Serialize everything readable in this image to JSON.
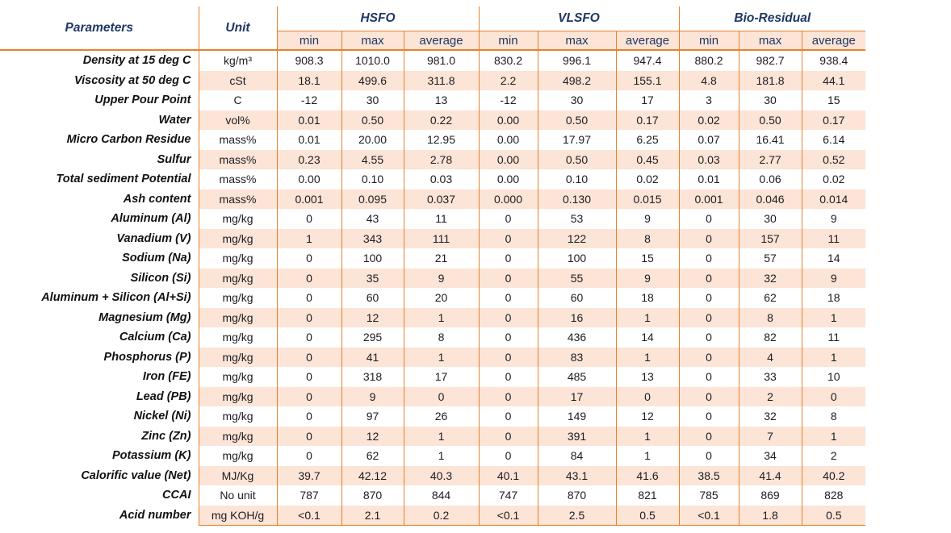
{
  "table": {
    "header": {
      "parameters_label": "Parameters",
      "unit_label": "Unit",
      "groups": [
        {
          "label": "HSFO"
        },
        {
          "label": "VLSFO"
        },
        {
          "label": "Bio-Residual"
        }
      ],
      "sub_columns": [
        "min",
        "max",
        "average"
      ]
    },
    "rows": [
      {
        "parameter": "Density at 15 deg C",
        "unit": "kg/m³",
        "hsfo": [
          "908.3",
          "1010.0",
          "981.0"
        ],
        "vlsfo": [
          "830.2",
          "996.1",
          "947.4"
        ],
        "bio": [
          "880.2",
          "982.7",
          "938.4"
        ]
      },
      {
        "parameter": "Viscosity at 50 deg C",
        "unit": "cSt",
        "hsfo": [
          "18.1",
          "499.6",
          "311.8"
        ],
        "vlsfo": [
          "2.2",
          "498.2",
          "155.1"
        ],
        "bio": [
          "4.8",
          "181.8",
          "44.1"
        ]
      },
      {
        "parameter": "Upper Pour Point",
        "unit": "C",
        "hsfo": [
          "-12",
          "30",
          "13"
        ],
        "vlsfo": [
          "-12",
          "30",
          "17"
        ],
        "bio": [
          "3",
          "30",
          "15"
        ]
      },
      {
        "parameter": "Water",
        "unit": "vol%",
        "hsfo": [
          "0.01",
          "0.50",
          "0.22"
        ],
        "vlsfo": [
          "0.00",
          "0.50",
          "0.17"
        ],
        "bio": [
          "0.02",
          "0.50",
          "0.17"
        ]
      },
      {
        "parameter": "Micro Carbon Residue",
        "unit": "mass%",
        "hsfo": [
          "0.01",
          "20.00",
          "12.95"
        ],
        "vlsfo": [
          "0.00",
          "17.97",
          "6.25"
        ],
        "bio": [
          "0.07",
          "16.41",
          "6.14"
        ]
      },
      {
        "parameter": "Sulfur",
        "unit": "mass%",
        "hsfo": [
          "0.23",
          "4.55",
          "2.78"
        ],
        "vlsfo": [
          "0.00",
          "0.50",
          "0.45"
        ],
        "bio": [
          "0.03",
          "2.77",
          "0.52"
        ]
      },
      {
        "parameter": "Total sediment Potential",
        "unit": "mass%",
        "hsfo": [
          "0.00",
          "0.10",
          "0.03"
        ],
        "vlsfo": [
          "0.00",
          "0.10",
          "0.02"
        ],
        "bio": [
          "0.01",
          "0.06",
          "0.02"
        ]
      },
      {
        "parameter": "Ash content",
        "unit": "mass%",
        "hsfo": [
          "0.001",
          "0.095",
          "0.037"
        ],
        "vlsfo": [
          "0.000",
          "0.130",
          "0.015"
        ],
        "bio": [
          "0.001",
          "0.046",
          "0.014"
        ]
      },
      {
        "parameter": "Aluminum (Al)",
        "unit": "mg/kg",
        "hsfo": [
          "0",
          "43",
          "11"
        ],
        "vlsfo": [
          "0",
          "53",
          "9"
        ],
        "bio": [
          "0",
          "30",
          "9"
        ]
      },
      {
        "parameter": "Vanadium (V)",
        "unit": "mg/kg",
        "hsfo": [
          "1",
          "343",
          "111"
        ],
        "vlsfo": [
          "0",
          "122",
          "8"
        ],
        "bio": [
          "0",
          "157",
          "11"
        ]
      },
      {
        "parameter": "Sodium (Na)",
        "unit": "mg/kg",
        "hsfo": [
          "0",
          "100",
          "21"
        ],
        "vlsfo": [
          "0",
          "100",
          "15"
        ],
        "bio": [
          "0",
          "57",
          "14"
        ]
      },
      {
        "parameter": "Silicon (Si)",
        "unit": "mg/kg",
        "hsfo": [
          "0",
          "35",
          "9"
        ],
        "vlsfo": [
          "0",
          "55",
          "9"
        ],
        "bio": [
          "0",
          "32",
          "9"
        ]
      },
      {
        "parameter": "Aluminum + Silicon (Al+Si)",
        "unit": "mg/kg",
        "hsfo": [
          "0",
          "60",
          "20"
        ],
        "vlsfo": [
          "0",
          "60",
          "18"
        ],
        "bio": [
          "0",
          "62",
          "18"
        ]
      },
      {
        "parameter": "Magnesium (Mg)",
        "unit": "mg/kg",
        "hsfo": [
          "0",
          "12",
          "1"
        ],
        "vlsfo": [
          "0",
          "16",
          "1"
        ],
        "bio": [
          "0",
          "8",
          "1"
        ]
      },
      {
        "parameter": "Calcium (Ca)",
        "unit": "mg/kg",
        "hsfo": [
          "0",
          "295",
          "8"
        ],
        "vlsfo": [
          "0",
          "436",
          "14"
        ],
        "bio": [
          "0",
          "82",
          "11"
        ]
      },
      {
        "parameter": "Phosphorus (P)",
        "unit": "mg/kg",
        "hsfo": [
          "0",
          "41",
          "1"
        ],
        "vlsfo": [
          "0",
          "83",
          "1"
        ],
        "bio": [
          "0",
          "4",
          "1"
        ]
      },
      {
        "parameter": "Iron (FE)",
        "unit": "mg/kg",
        "hsfo": [
          "0",
          "318",
          "17"
        ],
        "vlsfo": [
          "0",
          "485",
          "13"
        ],
        "bio": [
          "0",
          "33",
          "10"
        ]
      },
      {
        "parameter": "Lead (PB)",
        "unit": "mg/kg",
        "hsfo": [
          "0",
          "9",
          "0"
        ],
        "vlsfo": [
          "0",
          "17",
          "0"
        ],
        "bio": [
          "0",
          "2",
          "0"
        ]
      },
      {
        "parameter": "Nickel (Ni)",
        "unit": "mg/kg",
        "hsfo": [
          "0",
          "97",
          "26"
        ],
        "vlsfo": [
          "0",
          "149",
          "12"
        ],
        "bio": [
          "0",
          "32",
          "8"
        ]
      },
      {
        "parameter": "Zinc (Zn)",
        "unit": "mg/kg",
        "hsfo": [
          "0",
          "12",
          "1"
        ],
        "vlsfo": [
          "0",
          "391",
          "1"
        ],
        "bio": [
          "0",
          "7",
          "1"
        ]
      },
      {
        "parameter": "Potassium (K)",
        "unit": "mg/kg",
        "hsfo": [
          "0",
          "62",
          "1"
        ],
        "vlsfo": [
          "0",
          "84",
          "1"
        ],
        "bio": [
          "0",
          "34",
          "2"
        ]
      },
      {
        "parameter": "Calorific value (Net)",
        "unit": "MJ/Kg",
        "hsfo": [
          "39.7",
          "42.12",
          "40.3"
        ],
        "vlsfo": [
          "40.1",
          "43.1",
          "41.6"
        ],
        "bio": [
          "38.5",
          "41.4",
          "40.2"
        ]
      },
      {
        "parameter": "CCAI",
        "unit": "No unit",
        "hsfo": [
          "787",
          "870",
          "844"
        ],
        "vlsfo": [
          "747",
          "870",
          "821"
        ],
        "bio": [
          "785",
          "869",
          "828"
        ]
      },
      {
        "parameter": "Acid number",
        "unit": "mg KOH/g",
        "hsfo": [
          "<0.1",
          "2.1",
          "0.2"
        ],
        "vlsfo": [
          "<0.1",
          "2.5",
          "0.5"
        ],
        "bio": [
          "<0.1",
          "1.8",
          "0.5"
        ]
      }
    ],
    "colors": {
      "border_orange": "#E8812D",
      "shading_peach": "#FCE4D6",
      "header_navy": "#1F3864",
      "value_text": "#1C1C22",
      "background": "#FFFFFF"
    }
  }
}
